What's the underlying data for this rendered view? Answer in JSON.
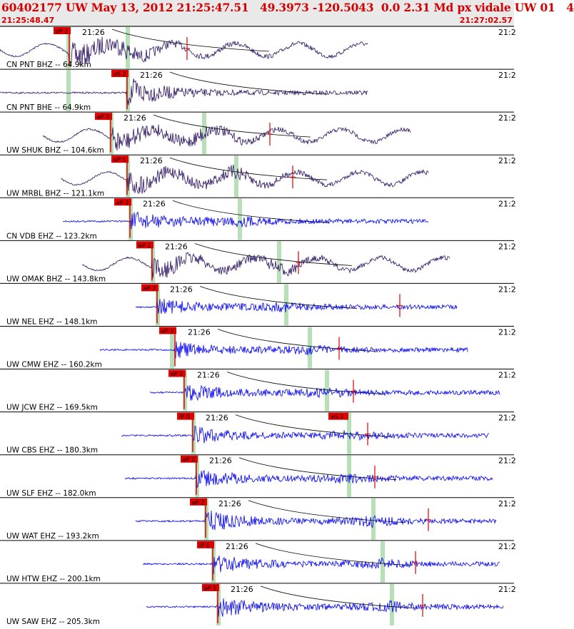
{
  "header": {
    "title": "60402177 UW May 13, 2012 21:25:47.51   49.3973 -120.5043  0.0 2.31 Md px vidale UW 01   4",
    "start_time": "21:25:48.47",
    "end_time": "21:27:02.57"
  },
  "colors": {
    "trace_broadband": "#2a1060",
    "trace_short_period": "#0000ee",
    "pick": "#e00000",
    "window": "#b8e0b8",
    "header_text": "#d40000"
  },
  "traces": [
    {
      "label": "CN PNT BHZ -- 64.9km",
      "time_label": "21:26",
      "right_time": "21:2",
      "pick_label": "eP 2",
      "s_label": "",
      "color": "#2a1060"
    },
    {
      "label": "CN PNT BHE -- 64.9km",
      "time_label": "21:26",
      "right_time": "21:2",
      "pick_label": "eS 2",
      "s_label": "",
      "color": "#2a1060"
    },
    {
      "label": "UW SHUK BHZ -- 104.6km",
      "time_label": "21:26",
      "right_time": "21:2",
      "pick_label": "eP 2",
      "s_label": "",
      "color": "#2a1060"
    },
    {
      "label": "UW MRBL BHZ -- 121.1km",
      "time_label": "21:26",
      "right_time": "21:2",
      "pick_label": "eP 1",
      "s_label": "",
      "color": "#2a1060"
    },
    {
      "label": "CN VDB EHZ -- 123.2km",
      "time_label": "21:26",
      "right_time": "21:2",
      "pick_label": "eP 2",
      "s_label": "",
      "color": "#0000ee"
    },
    {
      "label": "UW OMAK BHZ -- 143.8km",
      "time_label": "21:26",
      "right_time": "21:2",
      "pick_label": "eP 2",
      "s_label": "",
      "color": "#2a1060"
    },
    {
      "label": "UW NEL EHZ -- 148.1km",
      "time_label": "21:26",
      "right_time": "21:2",
      "pick_label": "eP 2",
      "s_label": "",
      "color": "#0000ee"
    },
    {
      "label": "UW CMW EHZ -- 160.2km",
      "time_label": "21:26",
      "right_time": "21:2",
      "pick_label": "eP 2",
      "s_label": "",
      "color": "#0000ee"
    },
    {
      "label": "UW JCW EHZ -- 169.5km",
      "time_label": "21:26",
      "right_time": "21:2",
      "pick_label": "eP 2",
      "s_label": "",
      "color": "#0000ee"
    },
    {
      "label": "UW CBS EHZ -- 180.3km",
      "time_label": "21:26",
      "right_time": "21:2",
      "pick_label": "iP 0",
      "s_label": "eS 2",
      "color": "#0000ee"
    },
    {
      "label": "UW SLF EHZ -- 182.0km",
      "time_label": "21:26",
      "right_time": "21:2",
      "pick_label": "eP 2",
      "s_label": "",
      "color": "#0000ee"
    },
    {
      "label": "UW WAT EHZ -- 193.2km",
      "time_label": "21:26",
      "right_time": "21:2",
      "pick_label": "eP 2",
      "s_label": "",
      "color": "#0000ee"
    },
    {
      "label": "UW HTW EHZ -- 200.1km",
      "time_label": "21:26",
      "right_time": "21:2",
      "pick_label": "iP 1",
      "s_label": "",
      "color": "#0000ee"
    },
    {
      "label": "UW SAW EHZ -- 205.3km",
      "time_label": "21:26",
      "right_time": "21:2",
      "pick_label": "eP 1",
      "s_label": "",
      "color": "#0000ee"
    }
  ]
}
